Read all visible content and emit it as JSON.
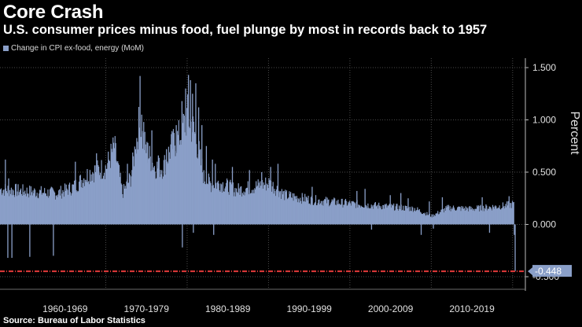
{
  "title": "Core Crash",
  "subtitle": "U.S. consumer prices minus food, fuel plunge by most in records back to 1957",
  "legend": "Change in CPI ex-food, energy (MoM)",
  "source": "Source: Bureau of Labor Statistics",
  "colors": {
    "bar": "#8a9fc8",
    "reference_line": "#e23a3a",
    "label_box": "#8a9fc8"
  },
  "chart_data": {
    "type": "bar",
    "series_name": "Change in CPI ex-food, energy (MoM)",
    "unit": "Percent",
    "ylabel": "Percent",
    "ylim": [
      -0.5,
      1.65
    ],
    "yticks": [
      1.5,
      1.0,
      0.5,
      0.0,
      -0.5
    ],
    "ytick_labels": [
      "1.500",
      "1.000",
      "0.500",
      "0.000",
      "-0.500"
    ],
    "xlim": [
      1957.0,
      2020.6
    ],
    "decades": [
      {
        "label": "1960-1969",
        "start": 1960
      },
      {
        "label": "1970-1979",
        "start": 1970
      },
      {
        "label": "1980-1989",
        "start": 1980
      },
      {
        "label": "1990-1999",
        "start": 1990
      },
      {
        "label": "2000-2009",
        "start": 2000
      },
      {
        "label": "2010-2019",
        "start": 2010
      }
    ],
    "reference_value": -0.448,
    "last_value_label": "-0.448",
    "profile": [
      [
        1957.0,
        0.34
      ],
      [
        1960,
        0.32
      ],
      [
        1964,
        0.3
      ],
      [
        1966,
        0.36
      ],
      [
        1968,
        0.5
      ],
      [
        1970,
        0.55
      ],
      [
        1971,
        0.75
      ],
      [
        1972,
        0.3
      ],
      [
        1973,
        0.45
      ],
      [
        1974,
        0.95
      ],
      [
        1975,
        0.7
      ],
      [
        1976,
        0.55
      ],
      [
        1977,
        0.55
      ],
      [
        1978,
        0.75
      ],
      [
        1979,
        0.85
      ],
      [
        1980,
        1.05
      ],
      [
        1981,
        0.85
      ],
      [
        1982,
        0.45
      ],
      [
        1983,
        0.38
      ],
      [
        1984,
        0.4
      ],
      [
        1986,
        0.33
      ],
      [
        1988,
        0.36
      ],
      [
        1990,
        0.4
      ],
      [
        1992,
        0.28
      ],
      [
        1995,
        0.24
      ],
      [
        2000,
        0.2
      ],
      [
        2005,
        0.17
      ],
      [
        2008,
        0.15
      ],
      [
        2010,
        0.08
      ],
      [
        2012,
        0.16
      ],
      [
        2015,
        0.15
      ],
      [
        2019,
        0.18
      ],
      [
        2020.2,
        0.2
      ]
    ],
    "spikes": [
      {
        "x": 1957.9,
        "value": -0.32
      },
      {
        "x": 1958.4,
        "value": -0.32
      },
      {
        "x": 1960.6,
        "value": -0.31
      },
      {
        "x": 1963.5,
        "value": -0.3
      },
      {
        "x": 1957.6,
        "value": 0.62
      },
      {
        "x": 1958.0,
        "value": 0.44
      },
      {
        "x": 1966.2,
        "value": 0.6
      },
      {
        "x": 1968.8,
        "value": 0.68
      },
      {
        "x": 1972.6,
        "value": 0.58
      },
      {
        "x": 1973.6,
        "value": 0.72
      },
      {
        "x": 1974.15,
        "value": 1.42
      },
      {
        "x": 1974.35,
        "value": 1.05
      },
      {
        "x": 1974.6,
        "value": 0.98
      },
      {
        "x": 1975.1,
        "value": 0.78
      },
      {
        "x": 1975.6,
        "value": 0.9
      },
      {
        "x": 1976.4,
        "value": 0.66
      },
      {
        "x": 1977.4,
        "value": 0.72
      },
      {
        "x": 1978.2,
        "value": 0.88
      },
      {
        "x": 1978.6,
        "value": 0.95
      },
      {
        "x": 1979.3,
        "value": 1.18
      },
      {
        "x": 1979.75,
        "value": 1.3
      },
      {
        "x": 1980.1,
        "value": 1.43
      },
      {
        "x": 1980.35,
        "value": 1.38
      },
      {
        "x": 1980.6,
        "value": 1.25
      },
      {
        "x": 1981.0,
        "value": 1.35
      },
      {
        "x": 1981.35,
        "value": 1.12
      },
      {
        "x": 1981.75,
        "value": 0.95
      },
      {
        "x": 1982.3,
        "value": 0.75
      },
      {
        "x": 1983.05,
        "value": 0.62
      },
      {
        "x": 1983.4,
        "value": 0.58
      },
      {
        "x": 1985.5,
        "value": 0.55
      },
      {
        "x": 1987.6,
        "value": 0.52
      },
      {
        "x": 1989.1,
        "value": 0.5
      },
      {
        "x": 1990.2,
        "value": 0.55
      },
      {
        "x": 1991.1,
        "value": 0.58
      },
      {
        "x": 1995.3,
        "value": 0.36
      },
      {
        "x": 2000.8,
        "value": 0.32
      },
      {
        "x": 2001.8,
        "value": 0.34
      },
      {
        "x": 2004.9,
        "value": 0.28
      },
      {
        "x": 2006.2,
        "value": 0.3
      },
      {
        "x": 2007.1,
        "value": 0.25
      },
      {
        "x": 2009.7,
        "value": 0.22
      },
      {
        "x": 2011.3,
        "value": 0.26
      },
      {
        "x": 2016.2,
        "value": 0.26
      },
      {
        "x": 2019.5,
        "value": 0.27
      },
      {
        "x": 1979.35,
        "value": -0.22
      },
      {
        "x": 1980.7,
        "value": -0.08
      },
      {
        "x": 1983.2,
        "value": -0.1
      },
      {
        "x": 2002.6,
        "value": -0.05
      },
      {
        "x": 2008.7,
        "value": -0.1
      },
      {
        "x": 2010.2,
        "value": -0.04
      },
      {
        "x": 2017.1,
        "value": -0.08
      },
      {
        "x": 2020.15,
        "value": -0.1
      },
      {
        "x": 2020.25,
        "value": -0.448
      }
    ]
  }
}
